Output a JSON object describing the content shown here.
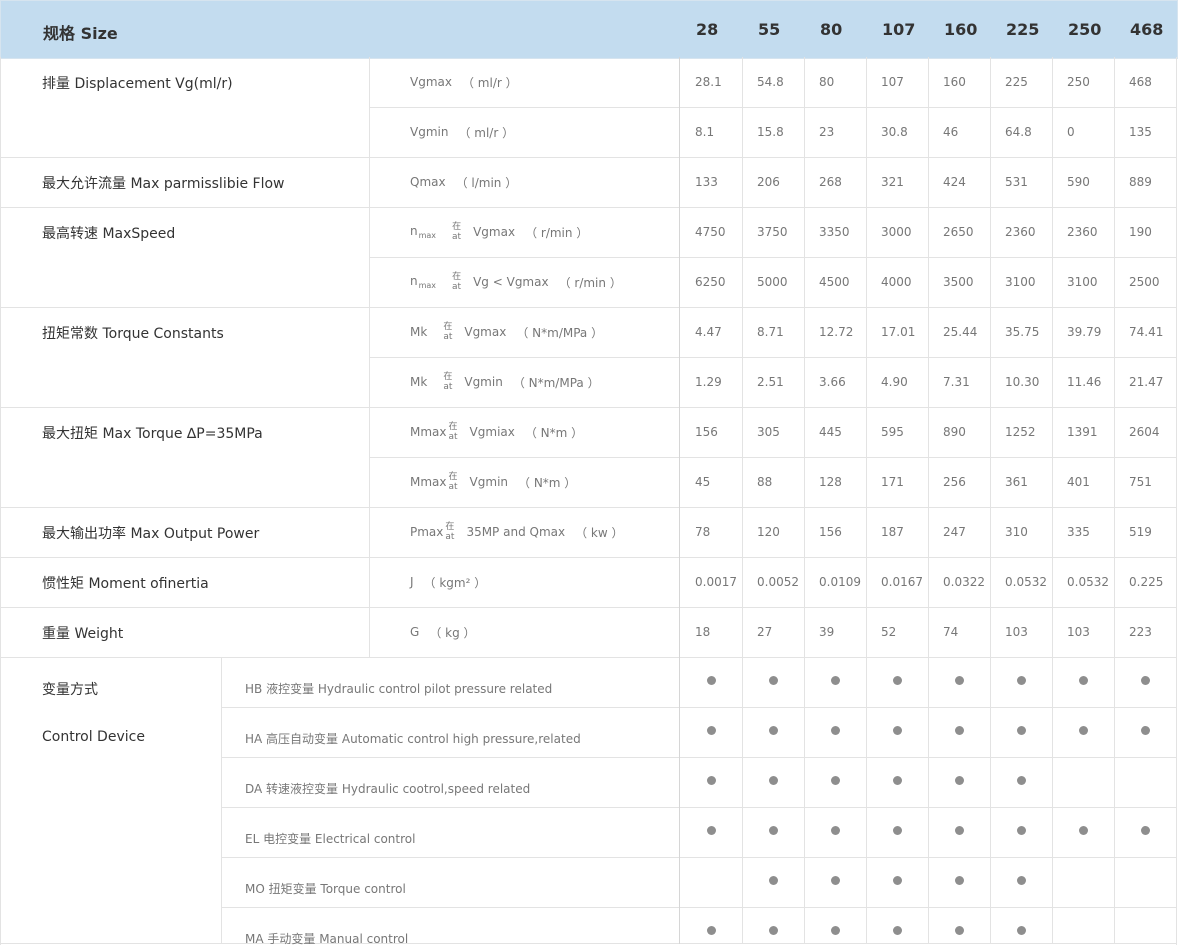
{
  "header": {
    "label": "规格 Size",
    "sizes": [
      "28",
      "55",
      "80",
      "107",
      "160",
      "225",
      "250",
      "468"
    ]
  },
  "params": [
    {
      "label": "排量 Displacement Vg(ml/r)",
      "rows": [
        {
          "symbol": "Vgmax",
          "unit": "（ ml/r ）",
          "values": [
            "28.1",
            "54.8",
            "80",
            "107",
            "160",
            "225",
            "250",
            "468"
          ]
        },
        {
          "symbol": "Vgmin",
          "unit": "（ ml/r ）",
          "values": [
            "8.1",
            "15.8",
            "23",
            "30.8",
            "46",
            "64.8",
            "0",
            "135"
          ]
        }
      ]
    },
    {
      "label": "最大允许流量 Max parmisslibie Flow",
      "rows": [
        {
          "symbol": "Qmax",
          "unit": "（ l/min ）",
          "values": [
            "133",
            "206",
            "268",
            "321",
            "424",
            "531",
            "590",
            "889"
          ]
        }
      ]
    },
    {
      "label": "最高转速 MaxSpeed",
      "rows": [
        {
          "symbol": "n",
          "symbol_sub": "max",
          "at_top": "在",
          "at_bottom": "at",
          "cond": "Vgmax",
          "unit": "（ r/min ）",
          "values": [
            "4750",
            "3750",
            "3350",
            "3000",
            "2650",
            "2360",
            "2360",
            "190"
          ]
        },
        {
          "symbol": "n",
          "symbol_sub": "max",
          "at_top": "在",
          "at_bottom": "at",
          "cond": "Vg < Vgmax",
          "unit": "（ r/min ）",
          "values": [
            "6250",
            "5000",
            "4500",
            "4000",
            "3500",
            "3100",
            "3100",
            "2500"
          ]
        }
      ]
    },
    {
      "label": "扭矩常数 Torque Constants",
      "rows": [
        {
          "symbol": "Mk",
          "at_top": "在",
          "at_bottom": "at",
          "cond": "Vgmax",
          "unit": "（ N*m/MPa ）",
          "values": [
            "4.47",
            "8.71",
            "12.72",
            "17.01",
            "25.44",
            "35.75",
            "39.79",
            "74.41"
          ]
        },
        {
          "symbol": "Mk",
          "at_top": "在",
          "at_bottom": "at",
          "cond": "Vgmin",
          "unit": "（ N*m/MPa ）",
          "values": [
            "1.29",
            "2.51",
            "3.66",
            "4.90",
            "7.31",
            "10.30",
            "11.46",
            "21.47"
          ]
        }
      ]
    },
    {
      "label": "最大扭矩 Max Torque ∆P=35MPa",
      "rows": [
        {
          "symbol": "Mmax",
          "at_top": "在",
          "at_bottom": "at",
          "cond": "Vgmiax",
          "unit": "（ N*m ）",
          "values": [
            "156",
            "305",
            "445",
            "595",
            "890",
            "1252",
            "1391",
            "2604"
          ]
        },
        {
          "symbol": "Mmax",
          "at_top": "在",
          "at_bottom": "at",
          "cond": "Vgmin",
          "unit": "（ N*m ）",
          "values": [
            "45",
            "88",
            "128",
            "171",
            "256",
            "361",
            "401",
            "751"
          ]
        }
      ]
    },
    {
      "label": "最大输出功率 Max Output Power",
      "rows": [
        {
          "symbol": "Pmax",
          "at_top": "在",
          "at_bottom": "at",
          "cond": "35MP and Qmax",
          "unit": "（ kw ）",
          "values": [
            "78",
            "120",
            "156",
            "187",
            "247",
            "310",
            "335",
            "519"
          ]
        }
      ]
    },
    {
      "label": "惯性矩 Moment ofinertia",
      "rows": [
        {
          "symbol": "J",
          "unit": "（ kgm² ）",
          "values": [
            "0.0017",
            "0.0052",
            "0.0109",
            "0.0167",
            "0.0322",
            "0.0532",
            "0.0532",
            "0.225"
          ]
        }
      ]
    },
    {
      "label": "重量 Weight",
      "rows": [
        {
          "symbol": "G",
          "unit": "（ kg ）",
          "values": [
            "18",
            "27",
            "39",
            "52",
            "74",
            "103",
            "103",
            "223"
          ]
        }
      ]
    }
  ],
  "control": {
    "label_zh": "变量方式",
    "label_en": "Control Device",
    "rows": [
      {
        "text": "HB 液控变量   Hydraulic control pilot pressure related",
        "available": [
          true,
          true,
          true,
          true,
          true,
          true,
          true,
          true
        ]
      },
      {
        "text": "HA 高压自动变量 Automatic control high pressure,related",
        "available": [
          true,
          true,
          true,
          true,
          true,
          true,
          true,
          true
        ]
      },
      {
        "text": "DA 转速液控变量 Hydraulic cootrol,speed related",
        "available": [
          true,
          true,
          true,
          true,
          true,
          true,
          false,
          false
        ]
      },
      {
        "text": "EL 电控变量   Electrical control",
        "available": [
          true,
          true,
          true,
          true,
          true,
          true,
          true,
          true
        ]
      },
      {
        "text": "MO 扭矩变量   Torque control",
        "available": [
          false,
          true,
          true,
          true,
          true,
          true,
          false,
          false
        ]
      },
      {
        "text": "MA 手动变量   Manual control",
        "available": [
          true,
          true,
          true,
          true,
          true,
          true,
          false,
          false
        ]
      }
    ]
  }
}
